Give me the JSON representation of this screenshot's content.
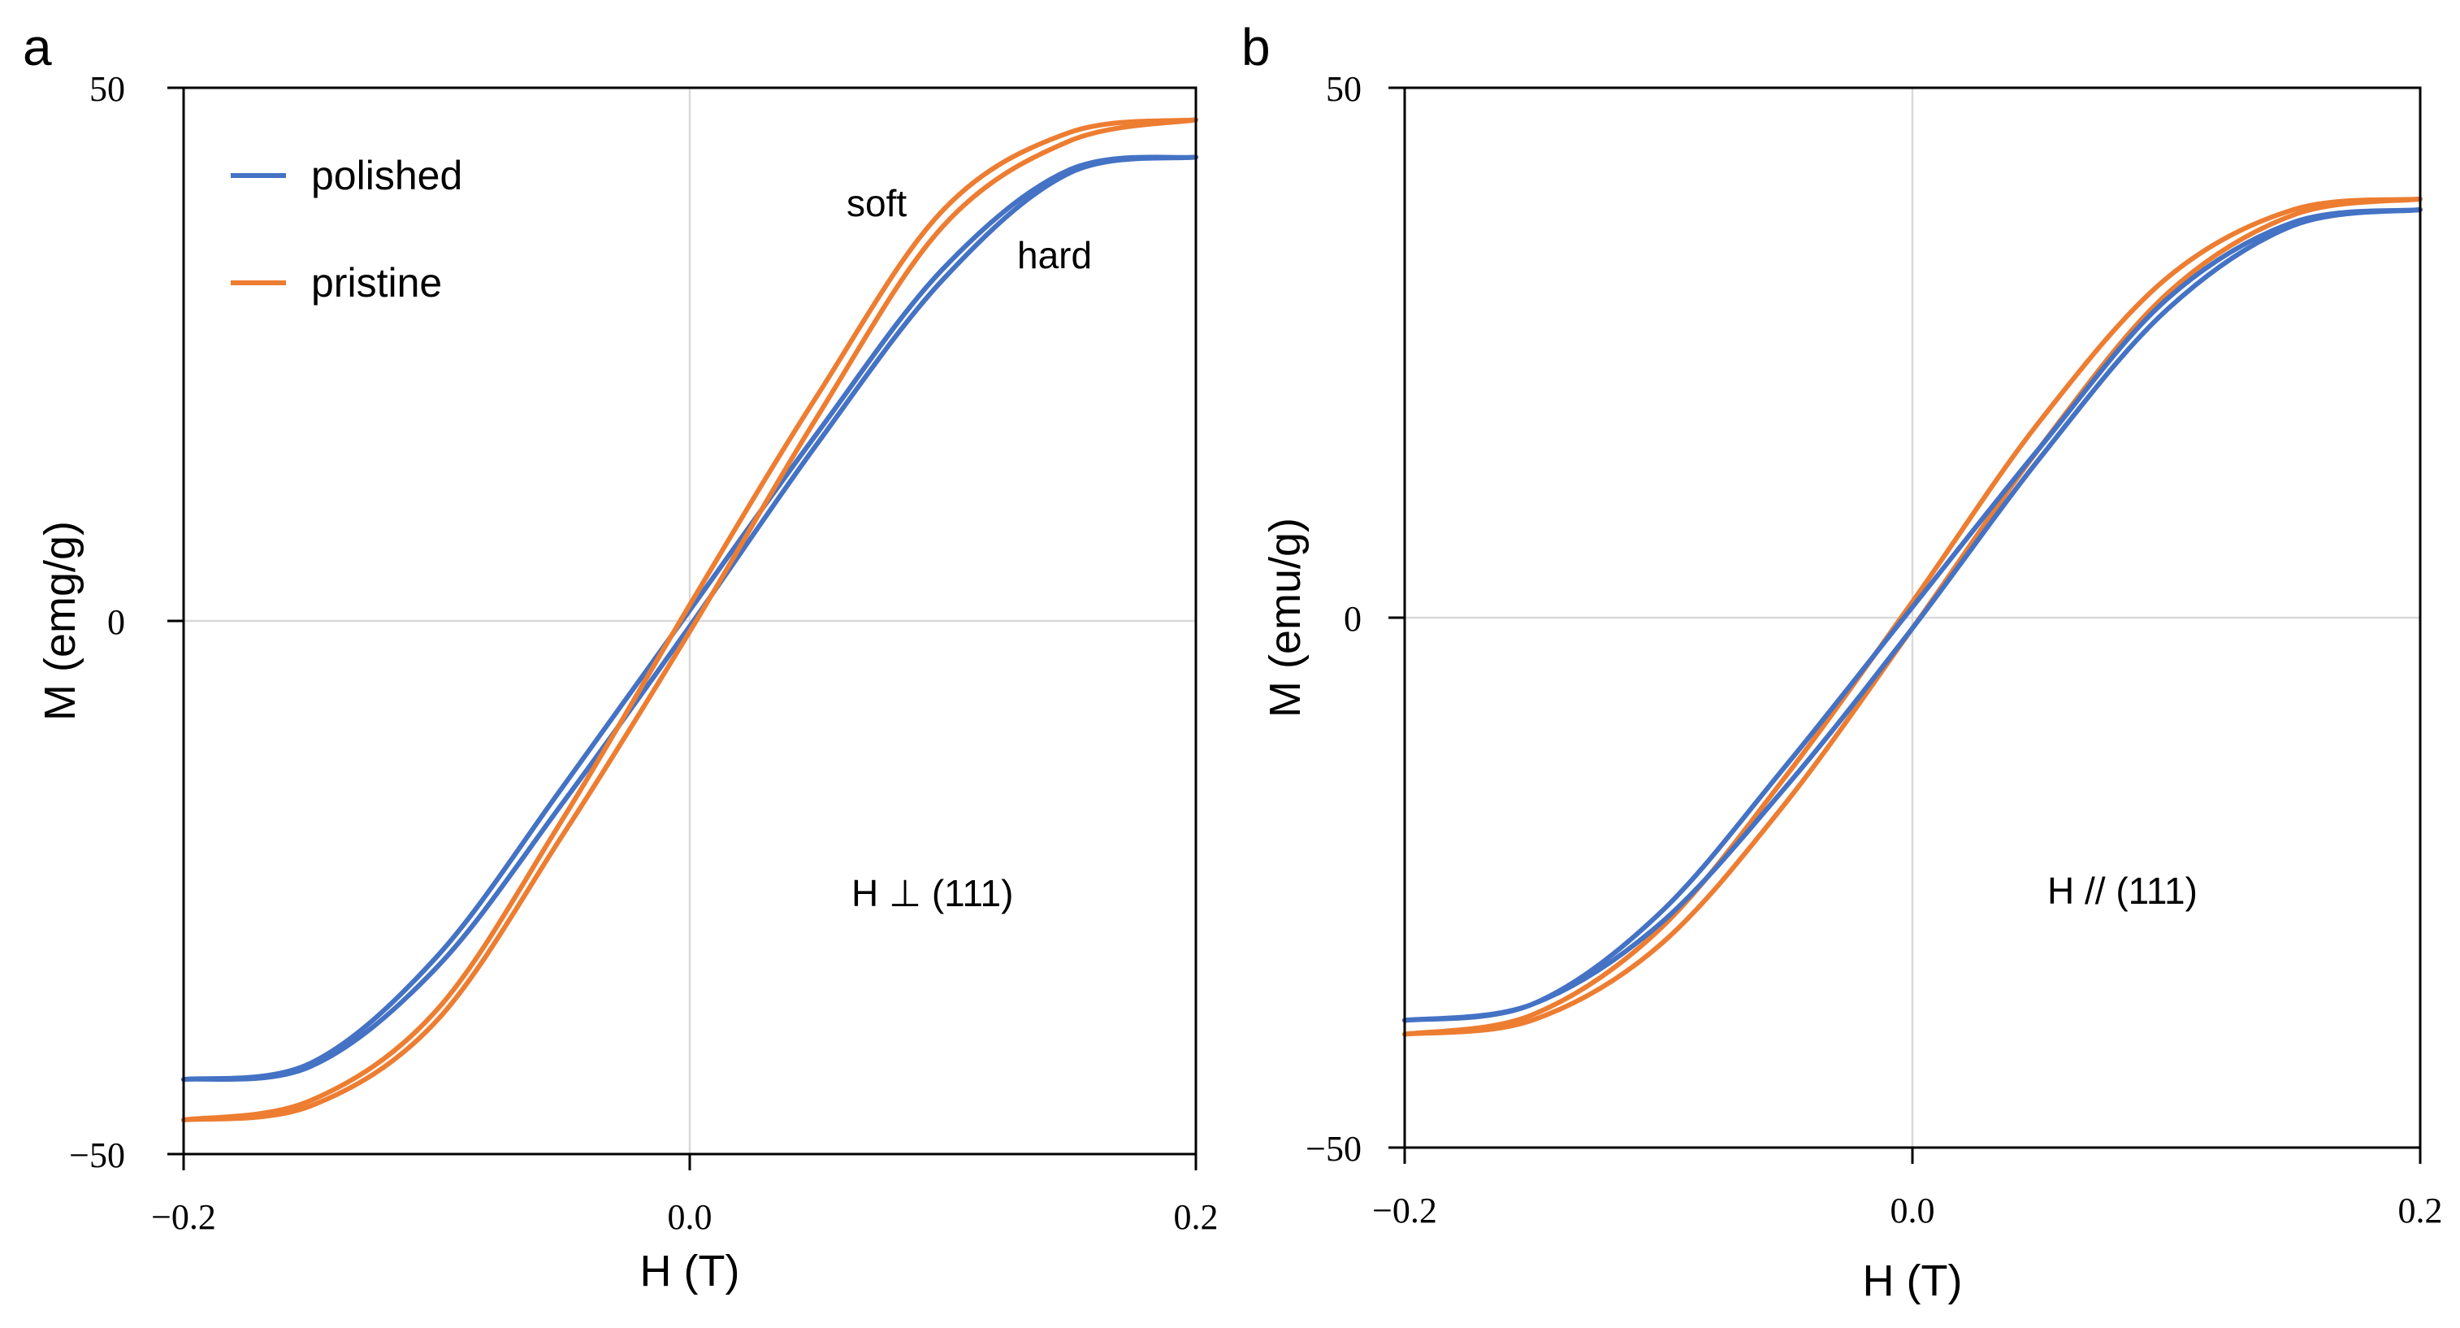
{
  "colors": {
    "polished": "#4472C4",
    "pristine": "#ED7D31",
    "grid": "#d9d9d9",
    "axis": "#000000"
  },
  "chart_data": [
    {
      "panel_label": "a",
      "type": "line",
      "xlabel": "H (T)",
      "ylabel": "M (emg/g)",
      "xlim": [
        -0.2,
        0.2
      ],
      "ylim": [
        -50,
        50
      ],
      "x_ticks": [
        "−0.2",
        "0.0",
        "0.2"
      ],
      "y_ticks": [
        "50",
        "0",
        "−50"
      ],
      "legend": {
        "placement": "top-left",
        "entries": [
          "polished",
          "pristine"
        ]
      },
      "annotations": {
        "soft": "soft",
        "hard": "hard",
        "orientation": "H ⊥ (111)"
      },
      "series": [
        {
          "name": "polished",
          "saturation": 43.5,
          "coercive_field": 0.004,
          "loop": {
            "descending": [
              [
                0.2,
                43.5
              ],
              [
                0.15,
                42.0
              ],
              [
                0.1,
                32.0
              ],
              [
                0.05,
                16.5
              ],
              [
                0.0,
                -0.5
              ],
              [
                -0.05,
                -17.0
              ],
              [
                -0.1,
                -32.5
              ],
              [
                -0.15,
                -41.8
              ],
              [
                -0.2,
                -43.0
              ]
            ],
            "ascending": [
              [
                -0.2,
                -43.0
              ],
              [
                -0.15,
                -41.5
              ],
              [
                -0.1,
                -31.5
              ],
              [
                -0.05,
                -15.5
              ],
              [
                0.0,
                1.0
              ],
              [
                0.05,
                17.5
              ],
              [
                0.1,
                33.0
              ],
              [
                0.15,
                42.3
              ],
              [
                0.2,
                43.5
              ]
            ]
          }
        },
        {
          "name": "pristine",
          "saturation": 47.0,
          "coercive_field": 0.005,
          "loop": {
            "descending": [
              [
                0.2,
                47.0
              ],
              [
                0.15,
                45.0
              ],
              [
                0.1,
                37.0
              ],
              [
                0.05,
                19.0
              ],
              [
                0.0,
                -1.0
              ],
              [
                -0.05,
                -20.0
              ],
              [
                -0.1,
                -37.5
              ],
              [
                -0.15,
                -45.5
              ],
              [
                -0.2,
                -46.8
              ]
            ],
            "ascending": [
              [
                -0.2,
                -46.8
              ],
              [
                -0.15,
                -45.0
              ],
              [
                -0.1,
                -36.5
              ],
              [
                -0.05,
                -18.5
              ],
              [
                0.0,
                1.5
              ],
              [
                0.05,
                21.0
              ],
              [
                0.1,
                38.5
              ],
              [
                0.15,
                45.8
              ],
              [
                0.2,
                47.0
              ]
            ]
          }
        }
      ]
    },
    {
      "panel_label": "b",
      "type": "line",
      "xlabel": "H (T)",
      "ylabel": "M (emu/g)",
      "xlim": [
        -0.2,
        0.2
      ],
      "ylim": [
        -50,
        50
      ],
      "x_ticks": [
        "−0.2",
        "0.0",
        "0.2"
      ],
      "y_ticks": [
        "50",
        "0",
        "−50"
      ],
      "annotations": {
        "orientation": "H // (111)"
      },
      "series": [
        {
          "name": "polished",
          "saturation": 38.5,
          "coercive_field": 0.004,
          "loop": {
            "descending": [
              [
                0.2,
                38.5
              ],
              [
                0.15,
                37.0
              ],
              [
                0.1,
                29.0
              ],
              [
                0.05,
                15.0
              ],
              [
                0.0,
                -1.0
              ],
              [
                -0.05,
                -16.0
              ],
              [
                -0.1,
                -29.0
              ],
              [
                -0.15,
                -36.5
              ],
              [
                -0.2,
                -38.0
              ]
            ],
            "ascending": [
              [
                -0.2,
                -38.0
              ],
              [
                -0.15,
                -36.5
              ],
              [
                -0.1,
                -28.0
              ],
              [
                -0.05,
                -14.0
              ],
              [
                0.0,
                1.0
              ],
              [
                0.05,
                16.0
              ],
              [
                0.1,
                30.0
              ],
              [
                0.15,
                37.3
              ],
              [
                0.2,
                38.5
              ]
            ]
          }
        },
        {
          "name": "pristine",
          "saturation": 39.5,
          "coercive_field": 0.005,
          "loop": {
            "descending": [
              [
                0.2,
                39.5
              ],
              [
                0.15,
                38.0
              ],
              [
                0.1,
                30.5
              ],
              [
                0.05,
                16.0
              ],
              [
                0.0,
                -1.0
              ],
              [
                -0.05,
                -17.5
              ],
              [
                -0.1,
                -31.0
              ],
              [
                -0.15,
                -38.0
              ],
              [
                -0.2,
                -39.3
              ]
            ],
            "ascending": [
              [
                -0.2,
                -39.3
              ],
              [
                -0.15,
                -37.5
              ],
              [
                -0.1,
                -29.5
              ],
              [
                -0.05,
                -15.0
              ],
              [
                0.0,
                1.5
              ],
              [
                0.05,
                18.5
              ],
              [
                0.1,
                32.0
              ],
              [
                0.15,
                38.5
              ],
              [
                0.2,
                39.5
              ]
            ]
          }
        }
      ]
    }
  ]
}
